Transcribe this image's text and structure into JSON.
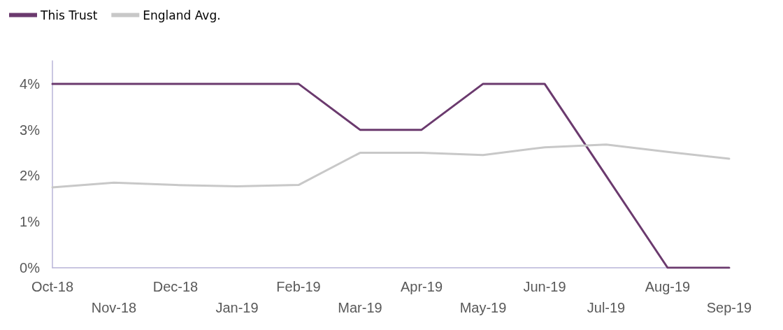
{
  "chart_data": {
    "type": "line",
    "categories": [
      "Oct-18",
      "Nov-18",
      "Dec-18",
      "Jan-19",
      "Feb-19",
      "Mar-19",
      "Apr-19",
      "May-19",
      "Jun-19",
      "Jul-19",
      "Aug-19",
      "Sep-19"
    ],
    "series": [
      {
        "name": "This Trust",
        "color": "#6b3a6e",
        "values": [
          4,
          4,
          4,
          4,
          4,
          3,
          3,
          4,
          4,
          2,
          0,
          0
        ]
      },
      {
        "name": "England Avg.",
        "color": "#c8c8c8",
        "values": [
          1.75,
          1.85,
          1.8,
          1.77,
          1.8,
          2.5,
          2.5,
          2.45,
          2.62,
          2.68,
          2.52,
          2.37
        ]
      }
    ],
    "ylim": [
      0,
      4.5
    ],
    "yticks": [
      {
        "value": 0,
        "label": "0%"
      },
      {
        "value": 1,
        "label": "1%"
      },
      {
        "value": 2,
        "label": "2%"
      },
      {
        "value": 3,
        "label": "3%"
      },
      {
        "value": 4,
        "label": "4%"
      }
    ],
    "grid": false,
    "legend": "top left",
    "marker": "none",
    "line_style": "solid"
  }
}
